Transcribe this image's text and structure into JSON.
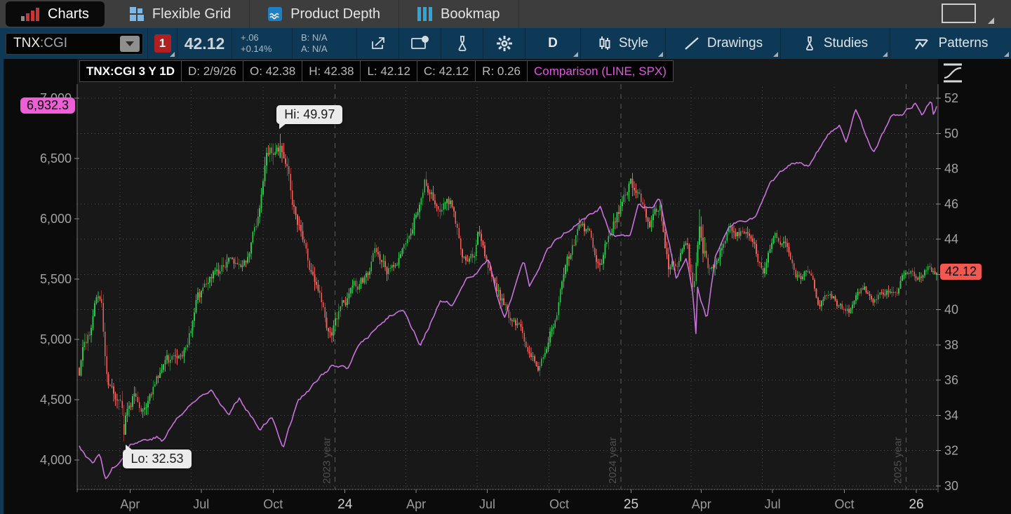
{
  "tabs": {
    "items": [
      {
        "label": "Charts",
        "icon": "bar-chart-icon",
        "active": true
      },
      {
        "label": "Flexible Grid",
        "icon": "grid-icon",
        "active": false
      },
      {
        "label": "Product Depth",
        "icon": "depth-waves-icon",
        "active": false
      },
      {
        "label": "Bookmap",
        "icon": "columns-icon",
        "active": false
      }
    ]
  },
  "toolbar": {
    "symbol": "TNX",
    "symbol_suffix": ":CGI",
    "linked_badge": "1",
    "price": "42.12",
    "change": "+.06",
    "change_pct": "+0.14%",
    "bid": "B: N/A",
    "ask": "A: N/A",
    "timeframe_label": "D",
    "style_label": "Style",
    "drawings_label": "Drawings",
    "studies_label": "Studies",
    "patterns_label": "Patterns"
  },
  "chart_header": {
    "title": "TNX:CGI 3 Y 1D",
    "fields": [
      "D: 2/9/26",
      "O: 42.38",
      "H: 42.38",
      "L: 42.12",
      "C: 42.12",
      "R: 0.26"
    ],
    "comparison": "Comparison (LINE, SPX)"
  },
  "chart_data": {
    "type": [
      "candlestick",
      "line"
    ],
    "title": "TNX:CGI 3 Y 1D",
    "symbol": "TNX:CGI",
    "comparison_symbol": "SPX",
    "x_axis": {
      "start": "2023-02-08",
      "end": "2026-02-09",
      "tick_labels": [
        {
          "label": "Apr",
          "date": "2023-04-14",
          "year": false
        },
        {
          "label": "Jul",
          "date": "2023-07-14",
          "year": false
        },
        {
          "label": "Oct",
          "date": "2023-10-14",
          "year": false
        },
        {
          "label": "24",
          "date": "2024-01-14",
          "year": true
        },
        {
          "label": "Apr",
          "date": "2024-04-14",
          "year": false
        },
        {
          "label": "Jul",
          "date": "2024-07-14",
          "year": false
        },
        {
          "label": "Oct",
          "date": "2024-10-14",
          "year": false
        },
        {
          "label": "25",
          "date": "2025-01-14",
          "year": true
        },
        {
          "label": "Apr",
          "date": "2025-04-14",
          "year": false
        },
        {
          "label": "Jul",
          "date": "2025-07-14",
          "year": false
        },
        {
          "label": "Oct",
          "date": "2025-10-14",
          "year": false
        },
        {
          "label": "26",
          "date": "2026-01-14",
          "year": true
        }
      ],
      "month_gridlines": [
        "2023-04-01",
        "2023-07-01",
        "2023-10-01",
        "2024-04-01",
        "2024-07-01",
        "2024-10-01",
        "2025-04-01",
        "2025-07-01",
        "2025-10-01"
      ],
      "year_gridlines": [
        {
          "label": "2023 year",
          "date": "2024-01-01"
        },
        {
          "label": "2024 year",
          "date": "2025-01-01"
        },
        {
          "label": "2025 year",
          "date": "2026-01-01"
        }
      ]
    },
    "right_axis": {
      "series": "TNX:CGI",
      "ticks": [
        52,
        50,
        48,
        46,
        44,
        42,
        40,
        38,
        36,
        34,
        32,
        30
      ],
      "last_price": 42.12,
      "last_price_label": "42.12"
    },
    "left_axis": {
      "series": "SPX",
      "ticks": [
        {
          "label": "7,000",
          "value": 7000
        },
        {
          "label": "6,500",
          "value": 6500
        },
        {
          "label": "6,000",
          "value": 6000
        },
        {
          "label": "5,500",
          "value": 5500
        },
        {
          "label": "5,000",
          "value": 5000
        },
        {
          "label": "4,500",
          "value": 4500
        },
        {
          "label": "4,000",
          "value": 4000
        }
      ],
      "last_price": 6932.3,
      "last_price_label": "6,932.3"
    },
    "annotations": {
      "hi": {
        "label": "Hi: 49.97",
        "value": 49.97,
        "date": "2023-10-23"
      },
      "lo": {
        "label": "Lo: 32.53",
        "value": 32.53,
        "date": "2023-04-06"
      }
    },
    "candle_anchors": [
      [
        "2023-02-08",
        36.7,
        0.9
      ],
      [
        "2023-02-21",
        38.9,
        0.8
      ],
      [
        "2023-03-02",
        40.5,
        0.7
      ],
      [
        "2023-03-09",
        39.8,
        0.9
      ],
      [
        "2023-03-15",
        35.5,
        1.4
      ],
      [
        "2023-03-24",
        34.0,
        1.2
      ],
      [
        "2023-04-06",
        33.0,
        0.9
      ],
      [
        "2023-04-20",
        35.3,
        0.8
      ],
      [
        "2023-05-04",
        34.4,
        0.8
      ],
      [
        "2023-05-18",
        35.6,
        0.7
      ],
      [
        "2023-06-01",
        36.2,
        0.8
      ],
      [
        "2023-06-22",
        37.5,
        0.7
      ],
      [
        "2023-07-07",
        40.5,
        0.8
      ],
      [
        "2023-07-20",
        41.0,
        0.7
      ],
      [
        "2023-08-03",
        41.8,
        0.8
      ],
      [
        "2023-08-21",
        43.2,
        0.7
      ],
      [
        "2023-09-01",
        42.2,
        0.6
      ],
      [
        "2023-09-14",
        43.0,
        0.6
      ],
      [
        "2023-09-27",
        45.5,
        0.8
      ],
      [
        "2023-10-06",
        48.0,
        0.9
      ],
      [
        "2023-10-23",
        49.6,
        1.1
      ],
      [
        "2023-11-01",
        48.5,
        1.1
      ],
      [
        "2023-11-10",
        46.3,
        0.9
      ],
      [
        "2023-11-22",
        44.1,
        0.8
      ],
      [
        "2023-12-05",
        42.0,
        0.8
      ],
      [
        "2023-12-27",
        38.8,
        0.8
      ],
      [
        "2024-01-10",
        40.0,
        0.7
      ],
      [
        "2024-01-24",
        41.3,
        0.7
      ],
      [
        "2024-02-08",
        41.6,
        0.7
      ],
      [
        "2024-02-22",
        43.0,
        0.7
      ],
      [
        "2024-03-07",
        41.8,
        0.7
      ],
      [
        "2024-03-21",
        43.0,
        0.6
      ],
      [
        "2024-04-09",
        44.8,
        0.7
      ],
      [
        "2024-04-25",
        47.2,
        0.8
      ],
      [
        "2024-05-08",
        45.8,
        0.7
      ],
      [
        "2024-05-29",
        46.2,
        0.7
      ],
      [
        "2024-06-13",
        43.5,
        0.7
      ],
      [
        "2024-06-27",
        43.2,
        0.6
      ],
      [
        "2024-07-03",
        44.3,
        0.7
      ],
      [
        "2024-07-17",
        42.3,
        0.6
      ],
      [
        "2024-08-01",
        40.5,
        0.8
      ],
      [
        "2024-08-14",
        39.0,
        0.6
      ],
      [
        "2024-08-28",
        38.4,
        0.6
      ],
      [
        "2024-09-16",
        36.7,
        0.6
      ],
      [
        "2024-09-27",
        37.5,
        0.6
      ],
      [
        "2024-10-10",
        39.8,
        0.7
      ],
      [
        "2024-10-22",
        42.0,
        0.7
      ],
      [
        "2024-11-06",
        44.0,
        0.8
      ],
      [
        "2024-11-21",
        44.1,
        0.7
      ],
      [
        "2024-12-06",
        41.9,
        0.7
      ],
      [
        "2024-12-18",
        44.0,
        0.8
      ],
      [
        "2025-01-14",
        47.8,
        0.9
      ],
      [
        "2025-01-24",
        46.2,
        0.7
      ],
      [
        "2025-02-06",
        44.9,
        0.7
      ],
      [
        "2025-02-20",
        45.5,
        0.7
      ],
      [
        "2025-03-03",
        42.2,
        0.8
      ],
      [
        "2025-03-13",
        42.8,
        0.7
      ],
      [
        "2025-03-27",
        43.6,
        0.6
      ],
      [
        "2025-04-04",
        40.5,
        1.2
      ],
      [
        "2025-04-11",
        44.9,
        2.0
      ],
      [
        "2025-04-23",
        43.0,
        0.9
      ],
      [
        "2025-05-06",
        43.5,
        0.7
      ],
      [
        "2025-05-21",
        45.5,
        0.7
      ],
      [
        "2025-06-05",
        44.6,
        0.6
      ],
      [
        "2025-06-20",
        44.0,
        0.6
      ],
      [
        "2025-07-01",
        42.3,
        0.6
      ],
      [
        "2025-07-15",
        44.0,
        0.6
      ],
      [
        "2025-07-30",
        44.2,
        0.6
      ],
      [
        "2025-08-13",
        42.6,
        0.6
      ],
      [
        "2025-08-28",
        42.2,
        0.5
      ],
      [
        "2025-09-11",
        40.3,
        0.5
      ],
      [
        "2025-09-25",
        41.3,
        0.5
      ],
      [
        "2025-10-10",
        40.2,
        0.5
      ],
      [
        "2025-10-24",
        40.0,
        0.5
      ],
      [
        "2025-11-07",
        41.0,
        0.5
      ],
      [
        "2025-11-21",
        40.5,
        0.5
      ],
      [
        "2025-12-05",
        41.3,
        0.5
      ],
      [
        "2025-12-19",
        41.6,
        0.5
      ],
      [
        "2026-01-06",
        42.5,
        0.5
      ],
      [
        "2026-01-16",
        41.9,
        0.5
      ],
      [
        "2026-01-28",
        42.6,
        0.5
      ],
      [
        "2026-02-09",
        42.12,
        0.4
      ]
    ],
    "comparison_anchors": [
      [
        "2023-02-08",
        4120
      ],
      [
        "2023-02-24",
        3970
      ],
      [
        "2023-03-06",
        4048
      ],
      [
        "2023-03-13",
        3855
      ],
      [
        "2023-03-22",
        3937
      ],
      [
        "2023-03-28",
        3970
      ],
      [
        "2023-04-14",
        4138
      ],
      [
        "2023-05-01",
        4167
      ],
      [
        "2023-05-18",
        4198
      ],
      [
        "2023-05-25",
        4151
      ],
      [
        "2023-06-12",
        4339
      ],
      [
        "2023-06-30",
        4450
      ],
      [
        "2023-07-27",
        4607
      ],
      [
        "2023-08-18",
        4370
      ],
      [
        "2023-09-01",
        4516
      ],
      [
        "2023-09-27",
        4274
      ],
      [
        "2023-10-12",
        4350
      ],
      [
        "2023-10-27",
        4117
      ],
      [
        "2023-11-15",
        4503
      ],
      [
        "2023-12-01",
        4594
      ],
      [
        "2023-12-28",
        4783
      ],
      [
        "2024-01-17",
        4740
      ],
      [
        "2024-02-02",
        4959
      ],
      [
        "2024-02-23",
        5089
      ],
      [
        "2024-03-21",
        5241
      ],
      [
        "2024-03-28",
        5254
      ],
      [
        "2024-04-19",
        4967
      ],
      [
        "2024-05-15",
        5308
      ],
      [
        "2024-05-31",
        5278
      ],
      [
        "2024-06-18",
        5487
      ],
      [
        "2024-07-16",
        5667
      ],
      [
        "2024-07-25",
        5399
      ],
      [
        "2024-08-05",
        5186
      ],
      [
        "2024-08-30",
        5648
      ],
      [
        "2024-09-06",
        5408
      ],
      [
        "2024-09-30",
        5762
      ],
      [
        "2024-10-18",
        5865
      ],
      [
        "2024-11-11",
        5984
      ],
      [
        "2024-12-06",
        6090
      ],
      [
        "2024-12-19",
        5868
      ],
      [
        "2025-01-13",
        5836
      ],
      [
        "2025-01-24",
        6101
      ],
      [
        "2025-02-10",
        6066
      ],
      [
        "2025-02-19",
        6147
      ],
      [
        "2025-03-13",
        5521
      ],
      [
        "2025-03-26",
        5712
      ],
      [
        "2025-04-03",
        5396
      ],
      [
        "2025-04-08",
        4983
      ],
      [
        "2025-04-09",
        5457
      ],
      [
        "2025-04-21",
        5158
      ],
      [
        "2025-05-02",
        5687
      ],
      [
        "2025-05-20",
        5940
      ],
      [
        "2025-06-06",
        6000
      ],
      [
        "2025-06-23",
        6025
      ],
      [
        "2025-07-10",
        6280
      ],
      [
        "2025-07-28",
        6390
      ],
      [
        "2025-08-14",
        6469
      ],
      [
        "2025-08-29",
        6460
      ],
      [
        "2025-09-22",
        6693
      ],
      [
        "2025-10-08",
        6754
      ],
      [
        "2025-10-16",
        6629
      ],
      [
        "2025-10-28",
        6891
      ],
      [
        "2025-11-20",
        6538
      ],
      [
        "2025-12-12",
        6828
      ],
      [
        "2025-12-30",
        6888
      ],
      [
        "2026-01-12",
        6960
      ],
      [
        "2026-01-22",
        6870
      ],
      [
        "2026-02-02",
        6990
      ],
      [
        "2026-02-05",
        6856
      ],
      [
        "2026-02-09",
        6932.3
      ]
    ],
    "colors": {
      "candle_up": "#2bc64a",
      "candle_down": "#f05f5a",
      "comparison_line": "#c873dc",
      "price_badge_bg": "#f25750",
      "comparison_badge_bg": "#ee5fd7",
      "grid": "#505050",
      "year_line": "#5c5c5c",
      "axis_text": "#a3a3a3",
      "plot_bg": "#181818"
    }
  }
}
